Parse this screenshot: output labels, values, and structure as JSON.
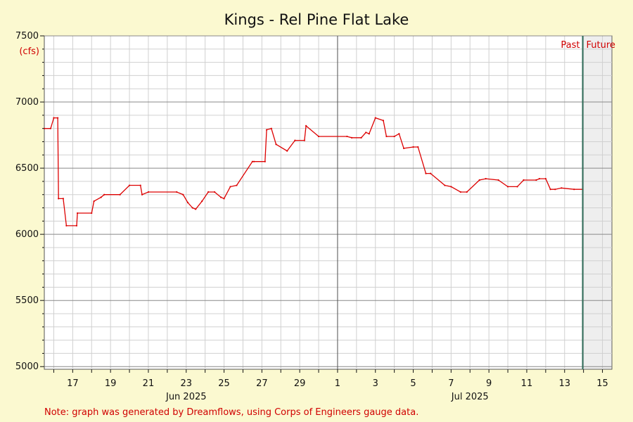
{
  "chart_data": {
    "type": "line",
    "title": "Kings - Rel Pine Flat Lake",
    "unit": "(cfs)",
    "ylim": [
      4980,
      7500
    ],
    "yticks": [
      5000,
      5500,
      6000,
      6500,
      7000,
      7500
    ],
    "x_range_days": [
      "2025-06-15T12:00",
      "2025-07-15T12:00"
    ],
    "x_tick_labels": [
      {
        "date": "2025-06-17",
        "label": "17"
      },
      {
        "date": "2025-06-19",
        "label": "19"
      },
      {
        "date": "2025-06-21",
        "label": "21"
      },
      {
        "date": "2025-06-23",
        "label": "23"
      },
      {
        "date": "2025-06-25",
        "label": "25"
      },
      {
        "date": "2025-06-27",
        "label": "27"
      },
      {
        "date": "2025-06-29",
        "label": "29"
      },
      {
        "date": "2025-07-01",
        "label": "1"
      },
      {
        "date": "2025-07-03",
        "label": "3"
      },
      {
        "date": "2025-07-05",
        "label": "5"
      },
      {
        "date": "2025-07-07",
        "label": "7"
      },
      {
        "date": "2025-07-09",
        "label": "9"
      },
      {
        "date": "2025-07-11",
        "label": "11"
      },
      {
        "date": "2025-07-13",
        "label": "13"
      },
      {
        "date": "2025-07-15",
        "label": "15"
      }
    ],
    "month_labels": [
      {
        "date": "2025-06-23",
        "label": "Jun 2025"
      },
      {
        "date": "2025-07-08",
        "label": "Jul 2025"
      }
    ],
    "now_marker": "2025-07-13T23:00",
    "past_label": "Past",
    "future_label": "Future",
    "grid": true,
    "colors": {
      "series": "#dd0000",
      "background": "#fbf9d0",
      "plot": "#ffffff",
      "future_shade": "#eeeeee",
      "now_line": "#2e6b57",
      "grid_major": "#888888",
      "grid_minor": "#d0d0d0"
    },
    "series": [
      {
        "x": [
          "2025-06-15T12:00",
          "2025-06-15T20:00",
          "2025-06-16T00:00",
          "2025-06-16T05:00",
          "2025-06-16T06:00",
          "2025-06-16T12:00",
          "2025-06-16T16:00",
          "2025-06-17T05:00",
          "2025-06-17T06:00",
          "2025-06-18T00:00",
          "2025-06-18T03:00",
          "2025-06-18T12:00",
          "2025-06-18T16:00",
          "2025-06-19T12:00",
          "2025-06-20T00:00",
          "2025-06-20T14:00",
          "2025-06-20T16:00",
          "2025-06-21T00:00",
          "2025-06-22T12:00",
          "2025-06-22T20:00",
          "2025-06-23T02:00",
          "2025-06-23T08:00",
          "2025-06-23T12:00",
          "2025-06-23T20:00",
          "2025-06-24T04:00",
          "2025-06-24T12:00",
          "2025-06-24T20:00",
          "2025-06-25T00:00",
          "2025-06-25T08:00",
          "2025-06-25T16:00",
          "2025-06-26T12:00",
          "2025-06-26T14:00",
          "2025-06-27T04:00",
          "2025-06-27T06:00",
          "2025-06-27T12:00",
          "2025-06-27T18:00",
          "2025-06-28T08:00",
          "2025-06-28T18:00",
          "2025-06-29T06:00",
          "2025-06-29T08:00",
          "2025-06-30T00:00",
          "2025-07-01T12:00",
          "2025-07-01T18:00",
          "2025-07-02T06:00",
          "2025-07-02T12:00",
          "2025-07-02T16:00",
          "2025-07-03T00:00",
          "2025-07-03T10:00",
          "2025-07-03T14:00",
          "2025-07-04T00:00",
          "2025-07-04T06:00",
          "2025-07-04T12:00",
          "2025-07-05T00:00",
          "2025-07-05T06:00",
          "2025-07-05T16:00",
          "2025-07-05T22:00",
          "2025-07-06T16:00",
          "2025-07-07T00:00",
          "2025-07-07T12:00",
          "2025-07-07T20:00",
          "2025-07-08T12:00",
          "2025-07-08T20:00",
          "2025-07-09T12:00",
          "2025-07-10T00:00",
          "2025-07-10T12:00",
          "2025-07-10T20:00",
          "2025-07-11T12:00",
          "2025-07-11T16:00",
          "2025-07-12T00:00",
          "2025-07-12T06:00",
          "2025-07-12T12:00",
          "2025-07-12T20:00",
          "2025-07-13T12:00",
          "2025-07-13T23:00"
        ],
        "values": [
          6800,
          6800,
          6880,
          6880,
          6270,
          6270,
          6065,
          6065,
          6160,
          6160,
          6250,
          6280,
          6300,
          6300,
          6370,
          6370,
          6300,
          6320,
          6320,
          6300,
          6240,
          6200,
          6190,
          6250,
          6320,
          6320,
          6280,
          6270,
          6360,
          6370,
          6550,
          6550,
          6550,
          6790,
          6800,
          6680,
          6630,
          6710,
          6710,
          6820,
          6740,
          6740,
          6730,
          6730,
          6770,
          6760,
          6880,
          6860,
          6740,
          6740,
          6760,
          6650,
          6660,
          6660,
          6460,
          6460,
          6370,
          6360,
          6320,
          6320,
          6410,
          6420,
          6410,
          6360,
          6360,
          6410,
          6410,
          6420,
          6420,
          6340,
          6340,
          6350,
          6340,
          6340
        ]
      }
    ]
  },
  "note": "Note: graph was generated by Dreamflows, using Corps of Engineers gauge data."
}
